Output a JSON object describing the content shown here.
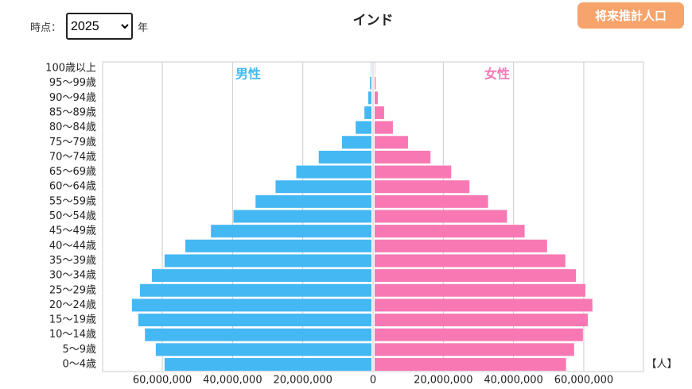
{
  "controls": {
    "time_label": "時点：",
    "year": "2025",
    "year_suffix": "年",
    "button": "将来推計人口"
  },
  "chart_data": {
    "type": "pyramid",
    "title": "インド",
    "unit_label": "【人】",
    "categories": [
      "0〜4歳",
      "5〜9歳",
      "10〜14歳",
      "15〜19歳",
      "20〜24歳",
      "25〜29歳",
      "30〜34歳",
      "35〜39歳",
      "40〜44歳",
      "45〜49歳",
      "50〜54歳",
      "55〜59歳",
      "60〜64歳",
      "65〜69歳",
      "70〜74歳",
      "75〜79歳",
      "80〜84歳",
      "85〜89歳",
      "90〜94歳",
      "95〜99歳",
      "100歳以上"
    ],
    "series": [
      {
        "name": "男性",
        "color": "#44b8f3",
        "side": "left",
        "values": [
          58900000,
          61400000,
          64500000,
          66400000,
          68200000,
          65900000,
          62500000,
          58900000,
          53000000,
          45700000,
          39300000,
          33000000,
          27300000,
          21400000,
          15000000,
          8400000,
          4500000,
          2000000,
          900000,
          400000,
          100000
        ]
      },
      {
        "name": "女性",
        "color": "#f878b4",
        "side": "right",
        "values": [
          54500000,
          56800000,
          59300000,
          60700000,
          62000000,
          60000000,
          57300000,
          54300000,
          49100000,
          42700000,
          37700000,
          32300000,
          27000000,
          21800000,
          15900000,
          9500000,
          5200000,
          2700000,
          900000,
          300000,
          100000
        ]
      }
    ],
    "xlim": [
      -77000000,
      77000000
    ],
    "xticks": [
      {
        "value": -60000000,
        "label": "60,000,000"
      },
      {
        "value": -40000000,
        "label": "40,000,000"
      },
      {
        "value": -20000000,
        "label": "20,000,000"
      },
      0,
      {
        "value": 20000000,
        "label": "20,000,000"
      },
      {
        "value": 40000000,
        "label": "40,000,000"
      },
      {
        "value": 60000000,
        "label": "60,000,000"
      }
    ],
    "grid": true
  }
}
